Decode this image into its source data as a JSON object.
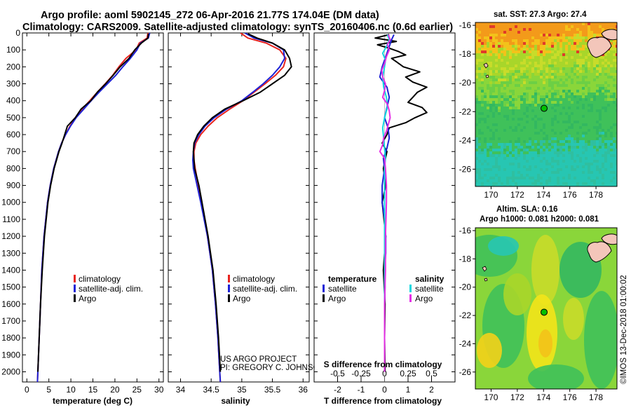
{
  "header": {
    "line1": "Argo profile: aoml 5902145_272 06-Apr-2016 21.77S 174.04E (DM data)",
    "line2": "Climatology: CARS2009. Satellite-adjusted climatology: synTS_20160406.nc (0.6d earlier)"
  },
  "colors": {
    "climatology": "#e8241f",
    "satellite": "#1d22d6",
    "argo": "#000000",
    "temp_satellite": "#1d22d6",
    "sal_satellite": "#14d8e0",
    "sal_argo": "#e52ee6"
  },
  "depth_axis": {
    "ticks": [
      0,
      100,
      200,
      300,
      400,
      500,
      600,
      700,
      800,
      900,
      1000,
      1100,
      1200,
      1300,
      1400,
      1500,
      1600,
      1700,
      1800,
      1900,
      2000
    ],
    "ylim": [
      2060,
      0
    ]
  },
  "chart_data": [
    {
      "type": "line",
      "id": "temperature-profile",
      "xlabel": "temperature (deg C)",
      "xlim": [
        -1,
        31
      ],
      "xticks": [
        0,
        5,
        10,
        15,
        20,
        25,
        30
      ],
      "ylim": [
        2060,
        0
      ],
      "series": [
        {
          "name": "climatology",
          "depth": [
            0,
            30,
            60,
            100,
            150,
            200,
            250,
            300,
            350,
            400,
            450,
            500,
            550,
            600,
            650,
            700,
            800,
            900,
            1000,
            1200,
            1400,
            1600,
            1800,
            2000,
            2060
          ],
          "values": [
            27.5,
            27.3,
            25.5,
            24.8,
            22.5,
            20.9,
            19.5,
            17.8,
            16.0,
            14.3,
            12.5,
            11.0,
            9.8,
            8.8,
            7.9,
            7.2,
            6.1,
            5.3,
            4.7,
            3.9,
            3.4,
            3.1,
            2.8,
            2.5,
            2.4
          ]
        },
        {
          "name": "satellite-adj. clim.",
          "depth": [
            0,
            30,
            60,
            100,
            150,
            200,
            250,
            300,
            350,
            400,
            450,
            500,
            550,
            600,
            650,
            700,
            800,
            900,
            1000,
            1200,
            1400,
            1600,
            1800,
            2000,
            2060
          ],
          "values": [
            27.9,
            27.6,
            25.8,
            25.0,
            23.5,
            21.8,
            20.2,
            18.3,
            16.4,
            14.6,
            12.9,
            11.2,
            9.9,
            8.8,
            7.9,
            7.2,
            6.1,
            5.3,
            4.7,
            3.9,
            3.4,
            3.1,
            2.8,
            2.5,
            2.4
          ]
        },
        {
          "name": "Argo",
          "depth": [
            5,
            30,
            60,
            100,
            150,
            200,
            250,
            300,
            350,
            400,
            450,
            500,
            550,
            600,
            650,
            700,
            800,
            900,
            1000,
            1200,
            1400,
            1600,
            1800,
            2000
          ],
          "values": [
            27.6,
            27.5,
            26.0,
            24.5,
            23.2,
            21.2,
            19.6,
            17.9,
            16.0,
            14.5,
            12.3,
            11.0,
            9.2,
            8.6,
            8.0,
            7.3,
            6.2,
            5.4,
            4.8,
            4.0,
            3.5,
            3.1,
            2.8,
            2.5
          ]
        }
      ],
      "legend": [
        "climatology",
        "satellite-adj. clim.",
        "Argo"
      ]
    },
    {
      "type": "line",
      "id": "salinity-profile",
      "xlabel": "salinity",
      "xlim": [
        33.8,
        36.1
      ],
      "xticks": [
        34,
        34.5,
        35,
        35.5,
        36
      ],
      "ylim": [
        2060,
        0
      ],
      "series": [
        {
          "name": "climatology",
          "depth": [
            0,
            30,
            60,
            100,
            150,
            200,
            250,
            300,
            350,
            400,
            450,
            500,
            550,
            600,
            650,
            700,
            750,
            800,
            900,
            1000,
            1200,
            1400,
            1600,
            1800,
            2000,
            2060
          ],
          "values": [
            34.98,
            35.1,
            35.4,
            35.62,
            35.72,
            35.68,
            35.55,
            35.38,
            35.2,
            35.02,
            34.8,
            34.6,
            34.45,
            34.33,
            34.25,
            34.22,
            34.22,
            34.24,
            34.29,
            34.34,
            34.44,
            34.52,
            34.57,
            34.61,
            34.64,
            34.65
          ]
        },
        {
          "name": "satellite-adj. clim.",
          "depth": [
            0,
            30,
            60,
            100,
            150,
            200,
            250,
            300,
            350,
            400,
            450,
            500,
            550,
            600,
            650,
            700,
            750,
            800,
            900,
            1000,
            1200,
            1400,
            1600,
            1800,
            2000,
            2060
          ],
          "values": [
            35.05,
            35.2,
            35.5,
            35.68,
            35.7,
            35.62,
            35.5,
            35.35,
            35.18,
            35.0,
            34.75,
            34.55,
            34.4,
            34.3,
            34.23,
            34.21,
            34.2,
            34.21,
            34.27,
            34.33,
            34.44,
            34.52,
            34.57,
            34.61,
            34.64,
            34.65
          ]
        },
        {
          "name": "Argo",
          "depth": [
            5,
            30,
            60,
            100,
            150,
            200,
            250,
            300,
            350,
            400,
            450,
            500,
            550,
            600,
            650,
            700,
            750,
            800,
            900,
            1000,
            1200,
            1400,
            1600,
            1800,
            2000
          ],
          "values": [
            35.1,
            35.25,
            35.5,
            35.7,
            35.78,
            35.81,
            35.7,
            35.5,
            35.3,
            35.02,
            34.72,
            34.52,
            34.38,
            34.28,
            34.22,
            34.21,
            34.22,
            34.23,
            34.3,
            34.35,
            34.45,
            34.53,
            34.58,
            34.62,
            34.65
          ]
        }
      ],
      "legend": [
        "climatology",
        "satellite-adj. clim.",
        "Argo"
      ]
    },
    {
      "type": "line",
      "id": "difference-profile",
      "xlabel": "T difference from climatology",
      "xlabel_top": "S difference from climatology",
      "xlim": [
        -3,
        3
      ],
      "xticks": [
        -2,
        -1,
        0,
        1,
        2
      ],
      "top_ticks": [
        -0.5,
        -0.25,
        0,
        0.25,
        0.5
      ],
      "top_tick_labels": [
        "-0.5",
        "-0.25",
        "0",
        "0.25",
        "0.5"
      ],
      "ylim": [
        2060,
        0
      ],
      "series": [
        {
          "name": "temperature Argo",
          "depth": [
            10,
            30,
            50,
            70,
            90,
            110,
            130,
            150,
            170,
            200,
            230,
            260,
            290,
            320,
            350,
            380,
            410,
            440,
            470,
            500,
            530,
            560,
            600,
            650,
            700,
            800,
            900,
            1000,
            1200,
            1400,
            1600,
            1800,
            2000
          ],
          "values": [
            0.2,
            -0.4,
            0.5,
            -0.3,
            0.2,
            0.6,
            0.9,
            0.3,
            0.5,
            0.8,
            1.5,
            0.9,
            1.2,
            1.8,
            1.4,
            1.2,
            1.0,
            1.6,
            1.8,
            1.3,
            0.9,
            0.2,
            0.1,
            -0.1,
            0.1,
            -0.05,
            0.05,
            -0.1,
            0.05,
            -0.05,
            0.02,
            0.0,
            0.02
          ]
        },
        {
          "name": "temperature satellite",
          "depth": [
            10,
            40,
            80,
            120,
            160,
            200,
            260,
            320,
            380,
            440,
            500,
            560,
            620,
            680,
            740,
            800,
            900,
            1000,
            1100,
            1200,
            1300,
            1400,
            1500,
            1600,
            1800,
            2000
          ],
          "values": [
            0.4,
            0.3,
            0.2,
            0.1,
            0.0,
            -0.1,
            -0.2,
            0.1,
            0.2,
            0.1,
            0.0,
            0.15,
            0.2,
            0.1,
            -0.05,
            0.0,
            -0.1,
            -0.1,
            0.0,
            0.05,
            0.05,
            0.0,
            0.02,
            0.0,
            0.0,
            0.0
          ]
        },
        {
          "name": "salinity satellite",
          "depth": [
            10,
            40,
            80,
            120,
            160,
            200,
            260,
            320,
            380,
            440,
            500,
            560,
            620,
            680,
            740,
            800,
            900,
            1000,
            1200,
            1400,
            1600,
            1800,
            2000
          ],
          "values": [
            0.03,
            0.05,
            0.02,
            -0.02,
            0.01,
            0.0,
            -0.02,
            -0.01,
            0.02,
            0.03,
            0.0,
            -0.02,
            -0.01,
            0.0,
            0.01,
            0.0,
            0.0,
            0.0,
            0.0,
            0.0,
            0.0,
            0.0,
            0.0
          ]
        },
        {
          "name": "salinity Argo",
          "depth": [
            10,
            40,
            70,
            100,
            140,
            180,
            220,
            260,
            300,
            340,
            380,
            420,
            460,
            500,
            540,
            580,
            620,
            660,
            700,
            740,
            800,
            900,
            1000,
            1200,
            1400,
            1600,
            1800,
            2000
          ],
          "values": [
            0.04,
            0.06,
            0.03,
            0.05,
            0.02,
            0.0,
            -0.03,
            -0.02,
            0.01,
            0.0,
            -0.02,
            0.03,
            0.05,
            0.06,
            0.04,
            0.02,
            -0.01,
            -0.02,
            -0.05,
            0.0,
            0.01,
            0.02,
            0.02,
            0.01,
            0.01,
            0.0,
            0.0,
            0.0
          ]
        }
      ],
      "legend_left_title": "temperature",
      "legend_right_title": "salinity",
      "legend_left": [
        "satellite",
        "Argo"
      ],
      "legend_right": [
        "satellite",
        "Argo"
      ]
    },
    {
      "type": "heatmap",
      "id": "sst-map",
      "title": "sat. SST: 27.3 Argo: 27.4",
      "xticks": [
        170,
        172,
        174,
        176,
        178
      ],
      "yticks": [
        -16,
        -18,
        -20,
        -22,
        -24,
        -26
      ],
      "xlim": [
        168.8,
        179.6
      ],
      "ylim": [
        -27.2,
        -15.8
      ],
      "marker": {
        "lon": 174.04,
        "lat": -21.77
      }
    },
    {
      "type": "heatmap",
      "id": "sla-map",
      "title_line1": "Altim. SLA: 0.16",
      "title_line2": "Argo h1000: 0.081 h2000: 0.081",
      "xticks": [
        170,
        172,
        174,
        176,
        178
      ],
      "yticks": [
        -16,
        -18,
        -20,
        -22,
        -24,
        -26
      ],
      "xlim": [
        168.8,
        179.6
      ],
      "ylim": [
        -27.2,
        -15.8
      ],
      "marker": {
        "lon": 174.04,
        "lat": -21.77
      }
    }
  ],
  "credits": {
    "line1": "US ARGO PROJECT",
    "line2": "PI: GREGORY C. JOHNSON"
  },
  "imos_stamp": "©IMOS 13-Dec-2018 01:00:02"
}
